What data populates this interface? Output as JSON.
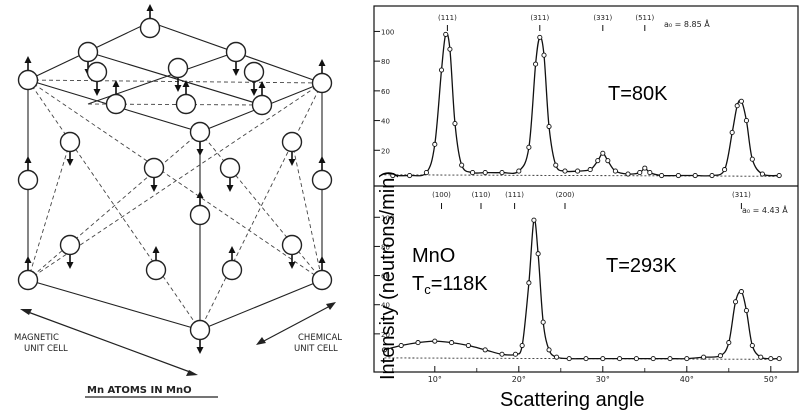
{
  "lattice": {
    "caption": "Mn ATOMS IN MnO",
    "magnetic_label_1": "MAGNETIC",
    "magnetic_label_2": "UNIT CELL",
    "chemical_label_1": "CHEMICAL",
    "chemical_label_2": "UNIT CELL"
  },
  "axes": {
    "ylabel": "Intensity (neutrons/min)",
    "xlabel": "Scattering angle",
    "x_ticks": [
      "10°",
      "20°",
      "30°",
      "40°",
      "50°"
    ],
    "y_ticks": [
      "20",
      "40",
      "60",
      "80",
      "100"
    ]
  },
  "annotations": {
    "material": "MnO",
    "tc_prefix": "T",
    "tc_sub": "c",
    "tc_suffix": "=118K"
  },
  "chart_data": [
    {
      "type": "line",
      "id": "top",
      "temperature_label": "T=80K",
      "lattice_label": "a₀ = 8.85 Å",
      "xlim": [
        3,
        53
      ],
      "ylim": [
        0,
        105
      ],
      "reflections": [
        {
          "label": "(111)",
          "x": 11.5
        },
        {
          "label": "(311)",
          "x": 22.5
        },
        {
          "label": "(331)",
          "x": 30.0
        },
        {
          "label": "(511)",
          "x": 35.0
        }
      ],
      "series": [
        {
          "x": [
            5,
            7,
            9,
            10,
            10.8,
            11.3,
            11.8,
            12.4,
            13.2,
            14.5,
            16,
            18,
            20,
            21.2,
            22,
            22.5,
            23,
            23.6,
            24.4,
            25.5,
            27,
            28.5,
            29.4,
            30,
            30.6,
            31.5,
            33,
            34.4,
            35,
            35.6,
            37,
            39,
            41,
            43,
            44.5,
            45.4,
            46,
            46.5,
            47.1,
            47.8,
            49,
            51
          ],
          "y": [
            3,
            3,
            5,
            24,
            74,
            98,
            88,
            38,
            10,
            5,
            5,
            5,
            6,
            22,
            78,
            96,
            84,
            36,
            10,
            6,
            6,
            7,
            13,
            18,
            13,
            6,
            4,
            5,
            8,
            5,
            3,
            3,
            3,
            3,
            7,
            32,
            50,
            53,
            40,
            14,
            4,
            3
          ]
        }
      ]
    },
    {
      "type": "line",
      "id": "bottom",
      "temperature_label": "T=293K",
      "lattice_label": "a₀ = 4.43 Å",
      "xlim": [
        3,
        53
      ],
      "ylim": [
        0,
        105
      ],
      "reflections": [
        {
          "label": "(100)",
          "x": 10.8
        },
        {
          "label": "(110)",
          "x": 15.5
        },
        {
          "label": "(111)",
          "x": 19.5
        },
        {
          "label": "(200)",
          "x": 25.5
        },
        {
          "label": "(311)",
          "x": 46.5
        }
      ],
      "series": [
        {
          "x": [
            4,
            6,
            8,
            10,
            12,
            14,
            16,
            18,
            19.6,
            20.4,
            21.2,
            21.8,
            22.3,
            22.9,
            23.6,
            24.5,
            26,
            28,
            30,
            32,
            34,
            36,
            38,
            40,
            42,
            44,
            45,
            45.8,
            46.5,
            47.1,
            47.8,
            48.8,
            50,
            51
          ],
          "y": [
            9,
            12,
            14,
            15,
            14,
            12,
            9,
            6,
            6,
            12,
            55,
            98,
            75,
            28,
            9,
            4,
            3,
            3,
            3,
            3,
            3,
            3,
            3,
            3,
            4,
            5,
            14,
            42,
            49,
            36,
            12,
            4,
            3,
            3
          ]
        }
      ]
    }
  ]
}
